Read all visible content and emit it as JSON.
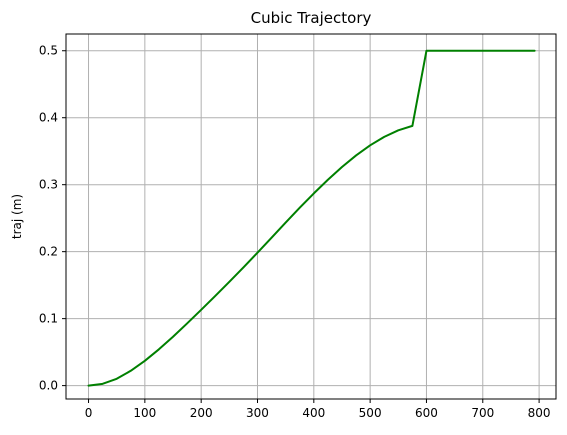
{
  "chart_data": {
    "type": "line",
    "title": "Cubic Trajectory",
    "xlabel": "",
    "ylabel": "traj (m)",
    "xlim": [
      -40,
      830
    ],
    "ylim": [
      -0.02,
      0.525
    ],
    "x_ticks": [
      0,
      100,
      200,
      300,
      400,
      500,
      600,
      700,
      800
    ],
    "y_ticks": [
      0.0,
      0.1,
      0.2,
      0.3,
      0.4,
      0.5
    ],
    "x_tick_labels": [
      "0",
      "100",
      "200",
      "300",
      "400",
      "500",
      "600",
      "700",
      "800"
    ],
    "y_tick_labels": [
      "0.0",
      "0.1",
      "0.2",
      "0.3",
      "0.4",
      "0.5"
    ],
    "grid": true,
    "legend": "none",
    "series": [
      {
        "color": "#008000",
        "x": [
          0,
          25,
          50,
          75,
          100,
          125,
          150,
          175,
          200,
          225,
          250,
          275,
          300,
          325,
          350,
          375,
          400,
          425,
          450,
          475,
          500,
          525,
          550,
          575,
          600,
          625,
          650,
          675,
          700,
          725,
          750,
          775,
          792
        ],
        "y": [
          0.0,
          0.0026,
          0.0102,
          0.0221,
          0.037,
          0.0542,
          0.0729,
          0.0928,
          0.1132,
          0.1339,
          0.155,
          0.1765,
          0.1985,
          0.2209,
          0.2434,
          0.2656,
          0.287,
          0.3074,
          0.3264,
          0.3437,
          0.3588,
          0.3714,
          0.3812,
          0.3878,
          0.5,
          0.5,
          0.5,
          0.5,
          0.5,
          0.5,
          0.5,
          0.5,
          0.5
        ]
      }
    ]
  },
  "colors": {
    "background": "#ffffff",
    "axes": "#000000",
    "grid": "#b0b0b0",
    "line": "#008000"
  }
}
